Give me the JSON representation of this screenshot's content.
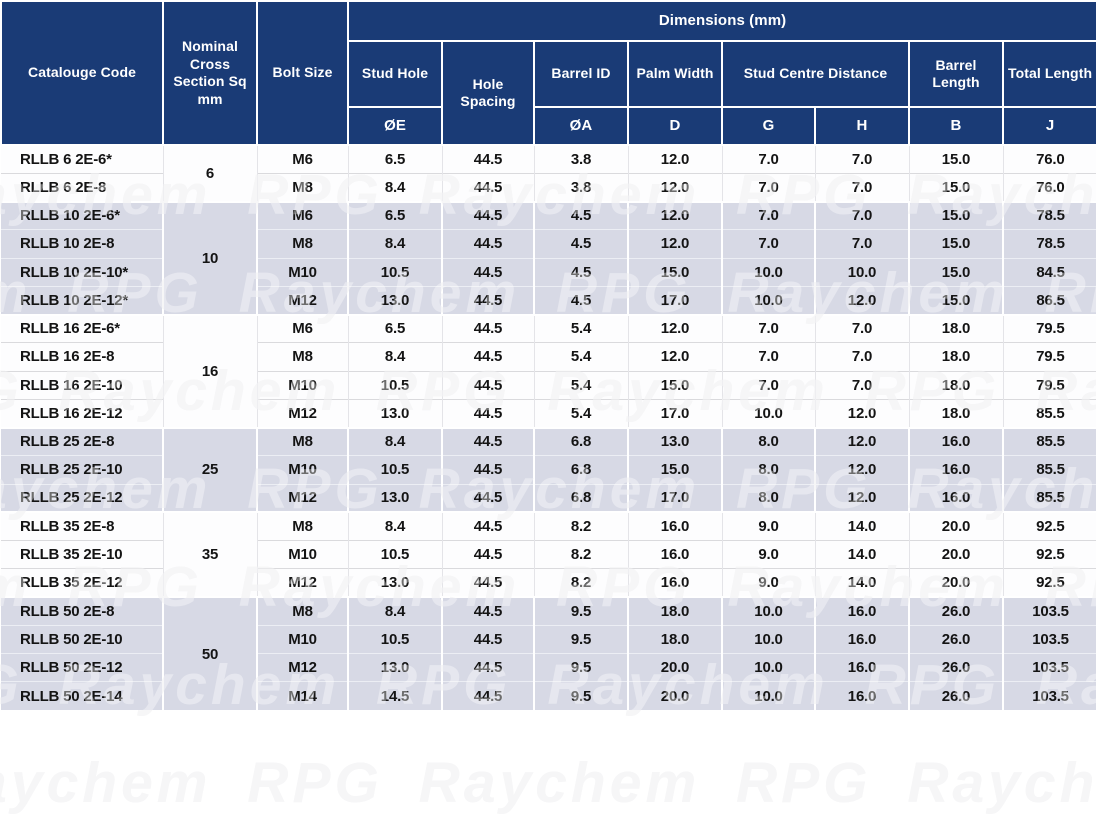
{
  "watermark": "Raychem RPG",
  "colors": {
    "header_bg": "#1a3b76",
    "band_alt": "#d7d9e5",
    "band_white": "#fdfdfe",
    "header_text": "#ffffff",
    "body_text": "#141414"
  },
  "table": {
    "title": "Dimensions (mm)",
    "headers": {
      "catalogue": "Catalouge Code",
      "nominal": "Nominal Cross Section Sq mm",
      "bolt": "Bolt Size",
      "stud_hole": "Stud Hole",
      "hole_spacing": "Hole Spacing",
      "barrel_id": "Barrel ID",
      "palm_width": "Palm Width",
      "stud_centre": "Stud Centre Distance",
      "barrel_length": "Barrel Length",
      "total_length": "Total Length"
    },
    "symbols": {
      "stud_hole": "ØE",
      "barrel_id": "ØA",
      "palm_width": "D",
      "stud_centre_g": "G",
      "stud_centre_h": "H",
      "barrel_length": "B",
      "total_length": "J"
    },
    "groups": [
      {
        "nominal": "6",
        "shade": "white",
        "rows": [
          {
            "code": "RLLB 6 2E-6*",
            "bolt": "M6",
            "oe": "6.5",
            "spacing": "44.5",
            "oa": "3.8",
            "d": "12.0",
            "g": "7.0",
            "h": "7.0",
            "b": "15.0",
            "j": "76.0"
          },
          {
            "code": "RLLB 6 2E-8",
            "bolt": "M8",
            "oe": "8.4",
            "spacing": "44.5",
            "oa": "3.8",
            "d": "12.0",
            "g": "7.0",
            "h": "7.0",
            "b": "15.0",
            "j": "76.0"
          }
        ]
      },
      {
        "nominal": "10",
        "shade": "alt",
        "rows": [
          {
            "code": "RLLB 10 2E-6*",
            "bolt": "M6",
            "oe": "6.5",
            "spacing": "44.5",
            "oa": "4.5",
            "d": "12.0",
            "g": "7.0",
            "h": "7.0",
            "b": "15.0",
            "j": "78.5"
          },
          {
            "code": "RLLB 10 2E-8",
            "bolt": "M8",
            "oe": "8.4",
            "spacing": "44.5",
            "oa": "4.5",
            "d": "12.0",
            "g": "7.0",
            "h": "7.0",
            "b": "15.0",
            "j": "78.5"
          },
          {
            "code": "RLLB 10 2E-10*",
            "bolt": "M10",
            "oe": "10.5",
            "spacing": "44.5",
            "oa": "4.5",
            "d": "15.0",
            "g": "10.0",
            "h": "10.0",
            "b": "15.0",
            "j": "84.5"
          },
          {
            "code": "RLLB 10 2E-12*",
            "bolt": "M12",
            "oe": "13.0",
            "spacing": "44.5",
            "oa": "4.5",
            "d": "17.0",
            "g": "10.0",
            "h": "12.0",
            "b": "15.0",
            "j": "86.5"
          }
        ]
      },
      {
        "nominal": "16",
        "shade": "white",
        "rows": [
          {
            "code": "RLLB 16 2E-6*",
            "bolt": "M6",
            "oe": "6.5",
            "spacing": "44.5",
            "oa": "5.4",
            "d": "12.0",
            "g": "7.0",
            "h": "7.0",
            "b": "18.0",
            "j": "79.5"
          },
          {
            "code": "RLLB 16 2E-8",
            "bolt": "M8",
            "oe": "8.4",
            "spacing": "44.5",
            "oa": "5.4",
            "d": "12.0",
            "g": "7.0",
            "h": "7.0",
            "b": "18.0",
            "j": "79.5"
          },
          {
            "code": "RLLB 16 2E-10",
            "bolt": "M10",
            "oe": "10.5",
            "spacing": "44.5",
            "oa": "5.4",
            "d": "15.0",
            "g": "7.0",
            "h": "7.0",
            "b": "18.0",
            "j": "79.5"
          },
          {
            "code": "RLLB 16 2E-12",
            "bolt": "M12",
            "oe": "13.0",
            "spacing": "44.5",
            "oa": "5.4",
            "d": "17.0",
            "g": "10.0",
            "h": "12.0",
            "b": "18.0",
            "j": "85.5"
          }
        ]
      },
      {
        "nominal": "25",
        "shade": "alt",
        "rows": [
          {
            "code": "RLLB 25 2E-8",
            "bolt": "M8",
            "oe": "8.4",
            "spacing": "44.5",
            "oa": "6.8",
            "d": "13.0",
            "g": "8.0",
            "h": "12.0",
            "b": "16.0",
            "j": "85.5"
          },
          {
            "code": "RLLB 25 2E-10",
            "bolt": "M10",
            "oe": "10.5",
            "spacing": "44.5",
            "oa": "6.8",
            "d": "15.0",
            "g": "8.0",
            "h": "12.0",
            "b": "16.0",
            "j": "85.5"
          },
          {
            "code": "RLLB 25 2E-12",
            "bolt": "M12",
            "oe": "13.0",
            "spacing": "44.5",
            "oa": "6.8",
            "d": "17.0",
            "g": "8.0",
            "h": "12.0",
            "b": "16.0",
            "j": "85.5"
          }
        ]
      },
      {
        "nominal": "35",
        "shade": "white",
        "rows": [
          {
            "code": "RLLB 35 2E-8",
            "bolt": "M8",
            "oe": "8.4",
            "spacing": "44.5",
            "oa": "8.2",
            "d": "16.0",
            "g": "9.0",
            "h": "14.0",
            "b": "20.0",
            "j": "92.5"
          },
          {
            "code": "RLLB 35 2E-10",
            "bolt": "M10",
            "oe": "10.5",
            "spacing": "44.5",
            "oa": "8.2",
            "d": "16.0",
            "g": "9.0",
            "h": "14.0",
            "b": "20.0",
            "j": "92.5"
          },
          {
            "code": "RLLB 35 2E-12",
            "bolt": "M12",
            "oe": "13.0",
            "spacing": "44.5",
            "oa": "8.2",
            "d": "16.0",
            "g": "9.0",
            "h": "14.0",
            "b": "20.0",
            "j": "92.5"
          }
        ]
      },
      {
        "nominal": "50",
        "shade": "alt",
        "rows": [
          {
            "code": "RLLB 50 2E-8",
            "bolt": "M8",
            "oe": "8.4",
            "spacing": "44.5",
            "oa": "9.5",
            "d": "18.0",
            "g": "10.0",
            "h": "16.0",
            "b": "26.0",
            "j": "103.5"
          },
          {
            "code": "RLLB 50 2E-10",
            "bolt": "M10",
            "oe": "10.5",
            "spacing": "44.5",
            "oa": "9.5",
            "d": "18.0",
            "g": "10.0",
            "h": "16.0",
            "b": "26.0",
            "j": "103.5"
          },
          {
            "code": "RLLB 50 2E-12",
            "bolt": "M12",
            "oe": "13.0",
            "spacing": "44.5",
            "oa": "9.5",
            "d": "20.0",
            "g": "10.0",
            "h": "16.0",
            "b": "26.0",
            "j": "103.5"
          },
          {
            "code": "RLLB 50 2E-14",
            "bolt": "M14",
            "oe": "14.5",
            "spacing": "44.5",
            "oa": "9.5",
            "d": "20.0",
            "g": "10.0",
            "h": "16.0",
            "b": "26.0",
            "j": "103.5"
          }
        ]
      }
    ]
  }
}
